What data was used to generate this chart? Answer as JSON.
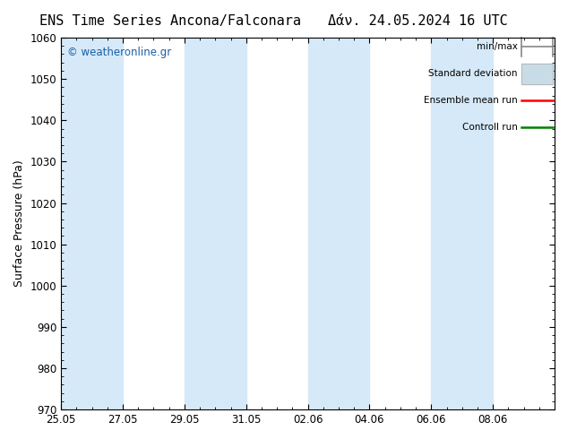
{
  "title_left": "ENS Time Series Ancona/Falconara",
  "title_right": "Δάν. 24.05.2024 16 UTC",
  "ylabel": "Surface Pressure (hPa)",
  "ylim": [
    970,
    1060
  ],
  "yticks": [
    970,
    980,
    990,
    1000,
    1010,
    1020,
    1030,
    1040,
    1050,
    1060
  ],
  "xtick_labels": [
    "25.05",
    "27.05",
    "29.05",
    "31.05",
    "02.06",
    "04.06",
    "06.06",
    "08.06"
  ],
  "xtick_positions": [
    0,
    2,
    4,
    6,
    8,
    10,
    12,
    14
  ],
  "xlim": [
    0,
    16
  ],
  "shaded_color": "#d6e9f8",
  "background_color": "#ffffff",
  "plot_bg_color": "#ffffff",
  "watermark_text": "© weatheronline.gr",
  "watermark_color": "#1a5fa8",
  "legend_items": [
    "min/max",
    "Standard deviation",
    "Ensemble mean run",
    "Controll run"
  ],
  "legend_colors": [
    "#888888",
    "#c8dce8",
    "#ff0000",
    "#008000"
  ],
  "title_fontsize": 11,
  "axis_fontsize": 9,
  "tick_fontsize": 8.5
}
